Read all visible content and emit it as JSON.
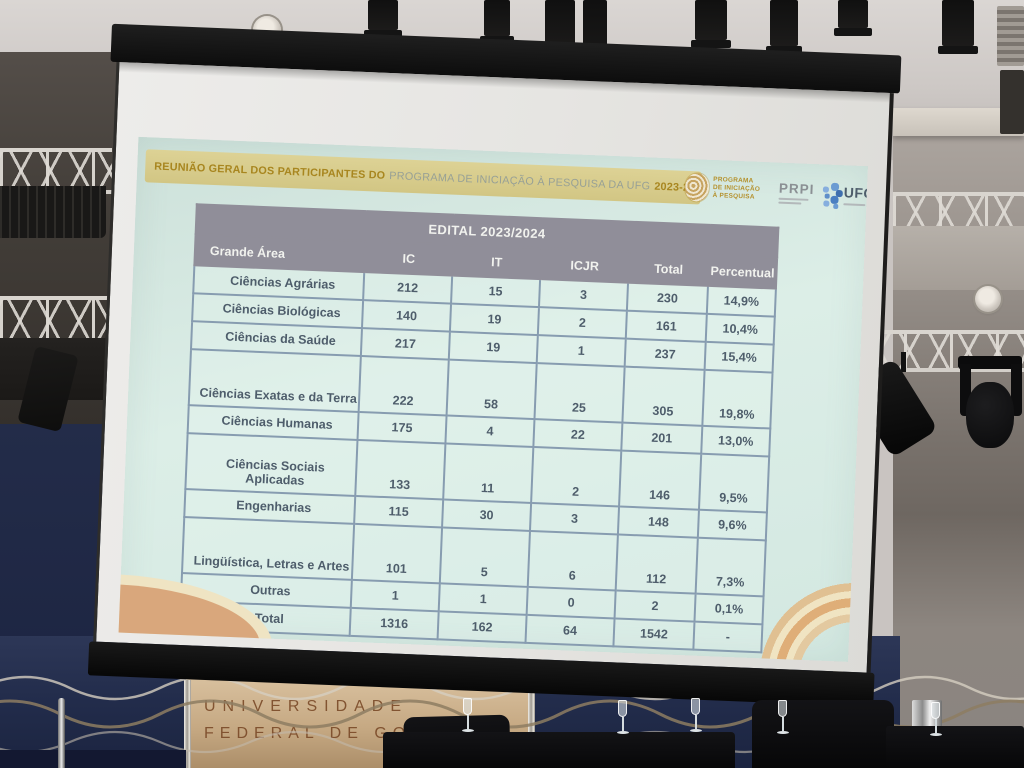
{
  "palette": {
    "slide_bg": "#d7eae3",
    "banner_bg": "#d6ca88",
    "banner_bold_text": "#a8861f",
    "banner_regular_text": "#97a096",
    "table_header_bg": "#908e99",
    "table_header_text": "#f1f2ee",
    "table_border": "#879cb0",
    "table_text": "#4e5d6b",
    "ornament_tan": "#d9a77c",
    "ornament_cream": "#efe4c3",
    "ufg_logo_blue": "#5f8fc9",
    "wall_navy": "#232c4b",
    "wall_beige": "#c6a983",
    "wall_sign_text": "#7a4a28"
  },
  "slide": {
    "banner": {
      "bold_prefix": "REUNIÃO GERAL DOS PARTICIPANTES DO",
      "regular_middle": "PROGRAMA DE INICIAÇÃO À PESQUISA DA UFG",
      "bold_suffix": "2023-2024"
    },
    "logos": {
      "programa_line1": "PROGRAMA",
      "programa_line2": "DE INICIAÇÃO",
      "programa_line3": "À PESQUISA",
      "prpi": "PRPI",
      "ufg": "UFG"
    },
    "table": {
      "title": "EDITAL 2023/2024",
      "columns": [
        "Grande Área",
        "IC",
        "IT",
        "ICJR",
        "Total",
        "Percentual"
      ],
      "rows": [
        [
          "Ciências Agrárias",
          "212",
          "15",
          "3",
          "230",
          "14,9%"
        ],
        [
          "Ciências Biológicas",
          "140",
          "19",
          "2",
          "161",
          "10,4%"
        ],
        [
          "Ciências da Saúde",
          "217",
          "19",
          "1",
          "237",
          "15,4%"
        ],
        [
          "Ciências Exatas e da Terra",
          "222",
          "58",
          "25",
          "305",
          "19,8%"
        ],
        [
          "Ciências Humanas",
          "175",
          "4",
          "22",
          "201",
          "13,0%"
        ],
        [
          "Ciências Sociais Aplicadas",
          "133",
          "11",
          "2",
          "146",
          "9,5%"
        ],
        [
          "Engenharias",
          "115",
          "30",
          "3",
          "148",
          "9,6%"
        ],
        [
          "Lingüística, Letras e Artes",
          "101",
          "5",
          "6",
          "112",
          "7,3%"
        ],
        [
          "Outras",
          "1",
          "1",
          "0",
          "2",
          "0,1%"
        ],
        [
          "Total",
          "1316",
          "162",
          "64",
          "1542",
          "-"
        ]
      ]
    }
  },
  "room": {
    "wall_sign_line1": "UNIVERSIDADE",
    "wall_sign_line2": "FEDERAL DE GOI"
  }
}
